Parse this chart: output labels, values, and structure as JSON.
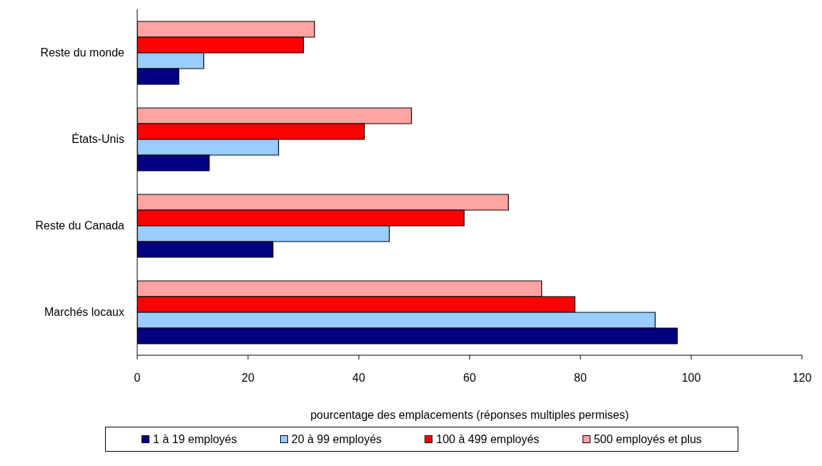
{
  "chart_data": {
    "type": "bar",
    "orientation": "horizontal",
    "xlabel": "pourcentage des emplacements (réponses multiples permises)",
    "categories": [
      "Reste du monde",
      "États-Unis",
      "Reste du Canada",
      "Marchés locaux"
    ],
    "series": [
      {
        "name": "1 à 19 employés",
        "color": "#000080",
        "values": [
          7.5,
          13,
          24.5,
          97.5
        ]
      },
      {
        "name": "20 à 99 employés",
        "color": "#99ccff",
        "values": [
          12,
          25.5,
          45.5,
          93.5
        ]
      },
      {
        "name": "100 à 499 employés",
        "color": "#ff0000",
        "values": [
          30,
          41,
          59,
          79
        ]
      },
      {
        "name": "500 employés et plus",
        "color": "#ffa3a3",
        "values": [
          32,
          49.5,
          67,
          73
        ]
      }
    ],
    "xlim": [
      0,
      120
    ],
    "xticks": [
      0,
      20,
      40,
      60,
      80,
      100,
      120
    ],
    "grid": false,
    "legend": "bottom"
  }
}
